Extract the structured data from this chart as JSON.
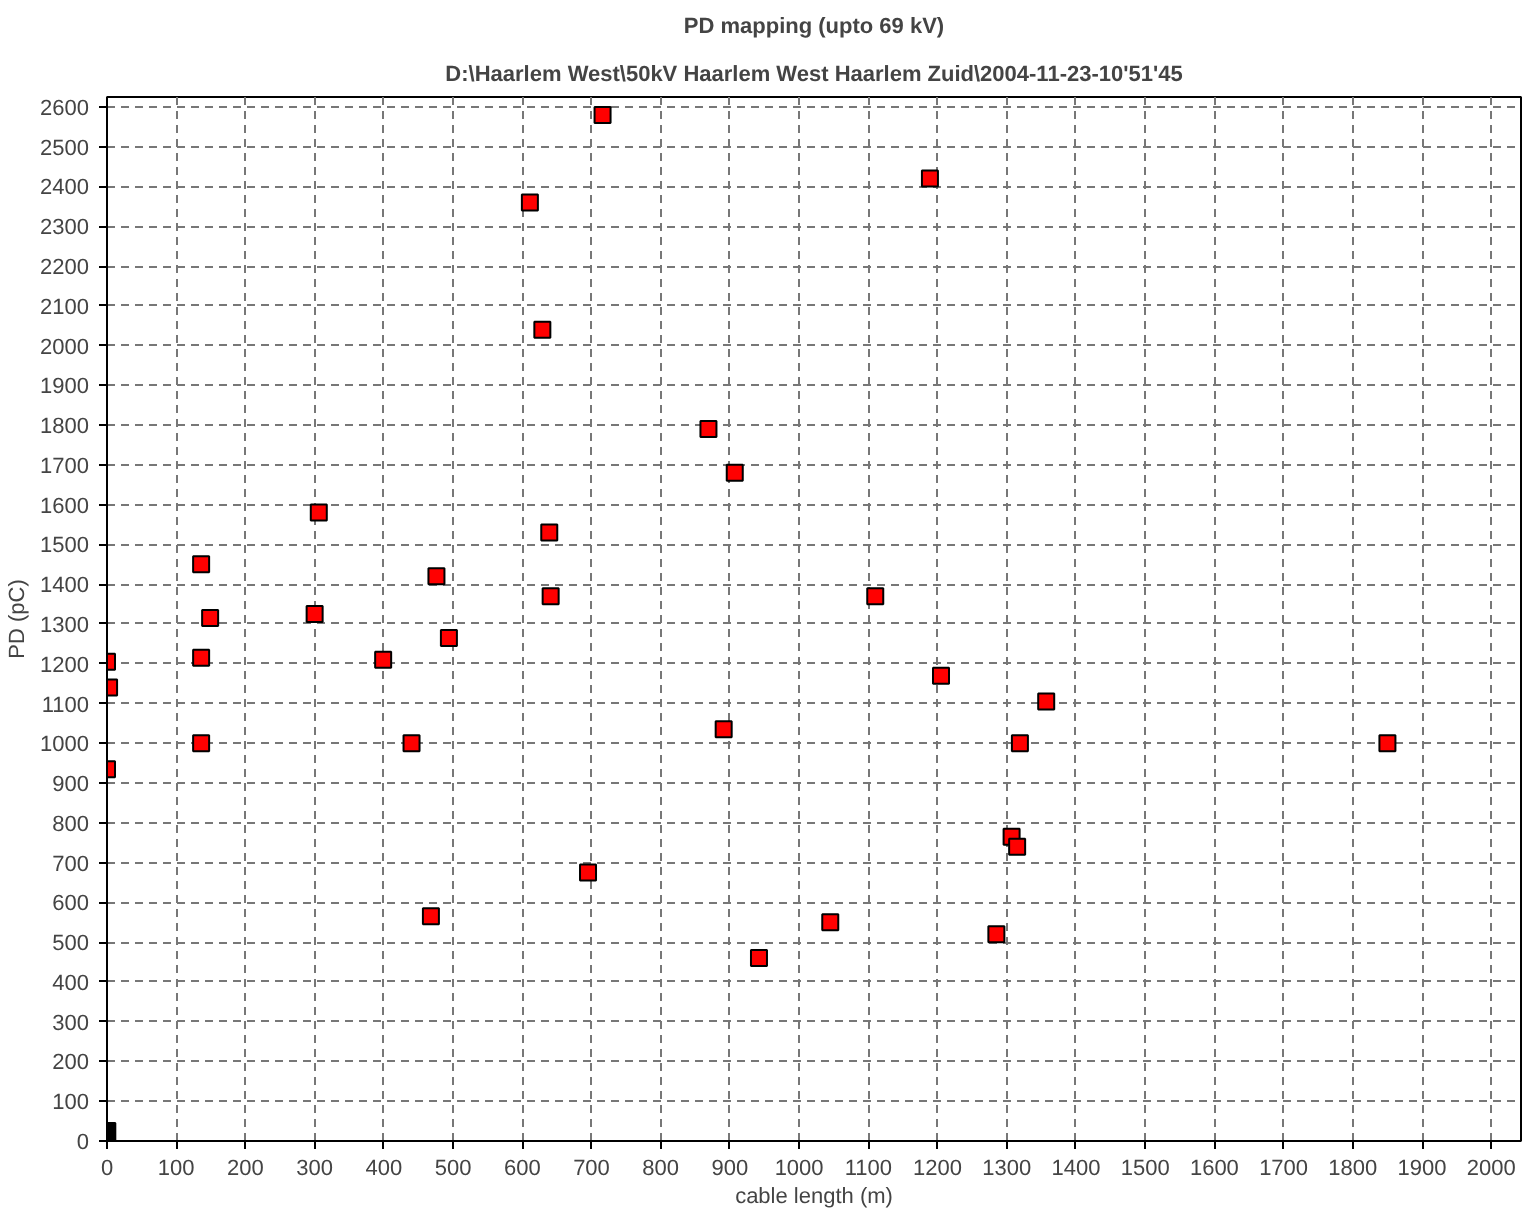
{
  "chart_data": {
    "type": "scatter",
    "title": "PD mapping (upto 69 kV)",
    "subtitle": "D:\\Haarlem West\\50kV Haarlem West Haarlem Zuid\\2004-11-23-10'51'45",
    "xlabel": "cable length (m)",
    "ylabel": "PD (pC)",
    "series": [
      {
        "color": "#ff0000",
        "x": [
          716,
          611,
          629,
          869,
          907,
          306,
          639,
          136,
          476,
          641,
          149,
          300,
          494,
          0,
          3,
          0,
          136,
          136,
          399,
          440,
          891,
          695,
          468,
          942,
          1189,
          1110,
          1205,
          1357,
          1319,
          1850,
          1307,
          1315,
          1045,
          1285
        ],
        "values": [
          2580,
          2360,
          2040,
          1790,
          1680,
          1580,
          1530,
          1450,
          1420,
          1370,
          1315,
          1325,
          1265,
          1205,
          1140,
          935,
          1215,
          1000,
          1210,
          1000,
          1035,
          675,
          565,
          460,
          2420,
          1370,
          1170,
          1105,
          1000,
          1000,
          765,
          740,
          550,
          520
        ]
      },
      {
        "type": "bar",
        "color": "#000000",
        "x": [
          6
        ],
        "values": [
          45
        ]
      }
    ],
    "xlim": [
      0,
      2043
    ],
    "ylim": [
      0,
      2625
    ],
    "xticks": [
      0,
      100,
      200,
      300,
      400,
      500,
      600,
      700,
      800,
      900,
      1000,
      1100,
      1200,
      1300,
      1400,
      1500,
      1600,
      1700,
      1800,
      1900,
      2000
    ],
    "yticks": [
      0,
      100,
      200,
      300,
      400,
      500,
      600,
      700,
      800,
      900,
      1000,
      1100,
      1200,
      1300,
      1400,
      1500,
      1600,
      1700,
      1800,
      1900,
      2000,
      2100,
      2200,
      2300,
      2400,
      2500,
      2600
    ],
    "grid": true,
    "marker": "square"
  }
}
